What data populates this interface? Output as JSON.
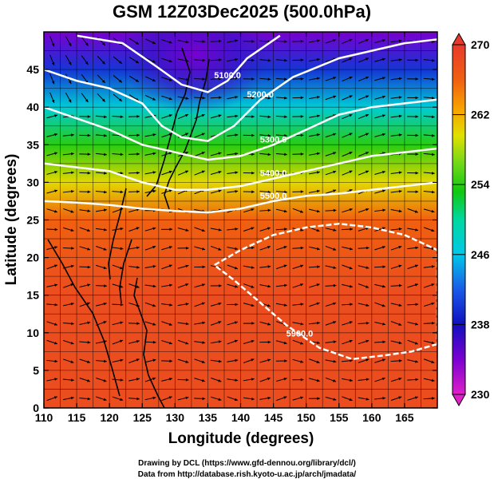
{
  "chart_data": {
    "type": "heatmap",
    "title": "GSM 12Z03Dec2025 (500.0hPa)",
    "xlabel": "Longitude (degrees)",
    "ylabel": "Latitude  (degrees)",
    "xlim": [
      110,
      170
    ],
    "ylim": [
      0,
      50
    ],
    "x_ticks": [
      "110",
      "115",
      "120",
      "125",
      "130",
      "135",
      "140",
      "145",
      "150",
      "155",
      "160",
      "165"
    ],
    "y_ticks": [
      "0",
      "5",
      "10",
      "15",
      "20",
      "25",
      "30",
      "35",
      "40",
      "45"
    ],
    "colorbar": {
      "min": 230,
      "max": 270,
      "ticks": [
        "230",
        "238",
        "246",
        "254",
        "262",
        "270"
      ]
    },
    "temperature_field": [
      {
        "lat": 0,
        "value": 268
      },
      {
        "lat": 5,
        "value": 268
      },
      {
        "lat": 10,
        "value": 268
      },
      {
        "lat": 15,
        "value": 268
      },
      {
        "lat": 20,
        "value": 267
      },
      {
        "lat": 25,
        "value": 266
      },
      {
        "lat": 30,
        "value": 260
      },
      {
        "lat": 35,
        "value": 254
      },
      {
        "lat": 40,
        "value": 247
      },
      {
        "lat": 45,
        "value": 240
      },
      {
        "lat": 50,
        "value": 234
      }
    ],
    "cold_core": {
      "lon": 133,
      "lat": 47,
      "value": 232
    },
    "contours": [
      {
        "label": "5100.0",
        "points": [
          [
            115,
            49.5
          ],
          [
            122,
            48.5
          ],
          [
            127,
            45.5
          ],
          [
            131,
            43
          ],
          [
            135,
            42
          ],
          [
            138,
            43.5
          ],
          [
            141,
            46.5
          ],
          [
            146,
            49.5
          ]
        ]
      },
      {
        "label": "5200.0",
        "points": [
          [
            110,
            45
          ],
          [
            115,
            43.5
          ],
          [
            120,
            42.5
          ],
          [
            125,
            40.5
          ],
          [
            128,
            37.5
          ],
          [
            131,
            36
          ],
          [
            135,
            35.5
          ],
          [
            139,
            37.5
          ],
          [
            143,
            41
          ],
          [
            148,
            44
          ],
          [
            155,
            46.5
          ],
          [
            160,
            47.5
          ],
          [
            165,
            48.5
          ],
          [
            170,
            49
          ]
        ]
      },
      {
        "label": "5300.0",
        "points": [
          [
            110,
            40
          ],
          [
            115,
            38.5
          ],
          [
            120,
            37
          ],
          [
            125,
            35
          ],
          [
            130,
            34
          ],
          [
            135,
            33
          ],
          [
            140,
            33.5
          ],
          [
            145,
            35
          ],
          [
            150,
            37
          ],
          [
            155,
            39
          ],
          [
            160,
            40
          ],
          [
            165,
            40.5
          ],
          [
            170,
            41
          ]
        ]
      },
      {
        "label": "5400.0",
        "points": [
          [
            110,
            32.5
          ],
          [
            115,
            32
          ],
          [
            120,
            31.5
          ],
          [
            125,
            30
          ],
          [
            130,
            29
          ],
          [
            135,
            29
          ],
          [
            140,
            29.5
          ],
          [
            145,
            30.5
          ],
          [
            150,
            31.5
          ],
          [
            155,
            32.5
          ],
          [
            160,
            33.5
          ],
          [
            165,
            34
          ],
          [
            170,
            34.5
          ]
        ]
      },
      {
        "label": "5500.0",
        "points": [
          [
            110,
            27.5
          ],
          [
            115,
            27.3
          ],
          [
            120,
            27
          ],
          [
            125,
            26.5
          ],
          [
            130,
            26.2
          ],
          [
            135,
            26
          ],
          [
            140,
            26.5
          ],
          [
            145,
            27.5
          ],
          [
            150,
            28.2
          ],
          [
            155,
            28.5
          ],
          [
            160,
            29
          ],
          [
            165,
            29.5
          ],
          [
            170,
            30
          ]
        ]
      }
    ],
    "contour_5900": {
      "label": "5900.0",
      "points": [
        [
          170,
          8.5
        ],
        [
          166,
          7.5
        ],
        [
          162,
          7
        ],
        [
          157,
          6.5
        ],
        [
          152,
          8
        ],
        [
          147,
          11
        ],
        [
          143,
          14
        ],
        [
          139,
          17
        ],
        [
          136,
          19
        ],
        [
          140,
          21
        ],
        [
          145,
          23
        ],
        [
          150,
          24
        ],
        [
          155,
          24.5
        ],
        [
          160,
          24
        ],
        [
          165,
          23
        ],
        [
          170,
          21
        ]
      ]
    },
    "wind_arrows": {
      "direction": "eastward",
      "spacing_deg": 2.5
    },
    "credits": [
      "Drawing by DCL (https://www.gfd-dennou.org/library/dcl/)",
      "Data from http://database.rish.kyoto-u.ac.jp/arch/jmadata/"
    ]
  }
}
